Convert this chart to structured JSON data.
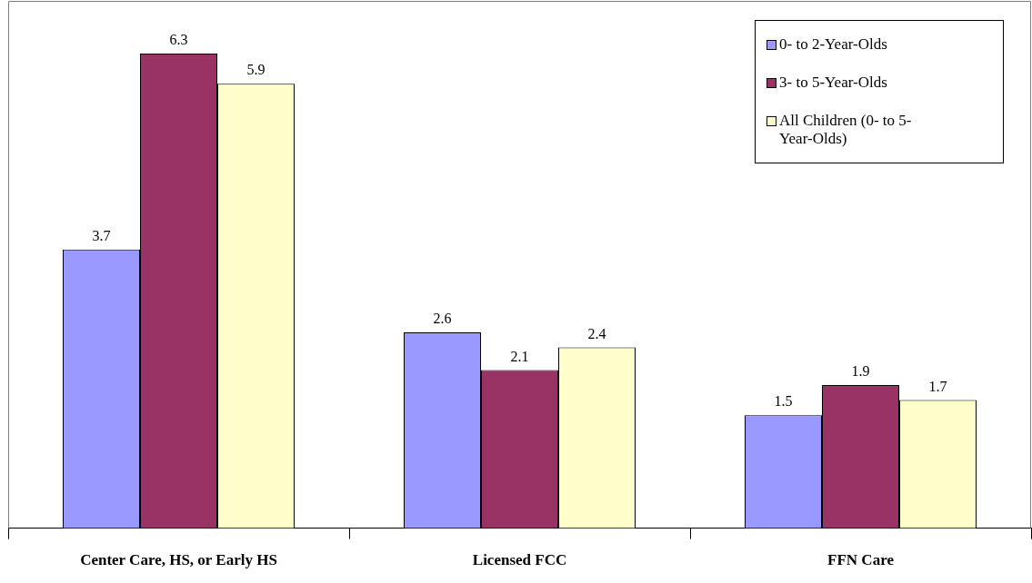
{
  "chart_data": {
    "type": "bar",
    "categories": [
      "Center Care, HS, or Early HS",
      "Licensed FCC",
      "FFN Care"
    ],
    "series": [
      {
        "name": "0- to 2-Year-Olds",
        "color": "#9999ff",
        "values": [
          3.7,
          2.6,
          1.5
        ]
      },
      {
        "name": "3- to 5-Year-Olds",
        "color": "#993366",
        "values": [
          6.3,
          2.1,
          1.9
        ]
      },
      {
        "name": "All Children (0- to 5-Year-Olds)",
        "color": "#ffffcc",
        "values": [
          5.9,
          2.4,
          1.7
        ]
      }
    ],
    "data_labels": true,
    "legend": "top right",
    "grid": false
  }
}
